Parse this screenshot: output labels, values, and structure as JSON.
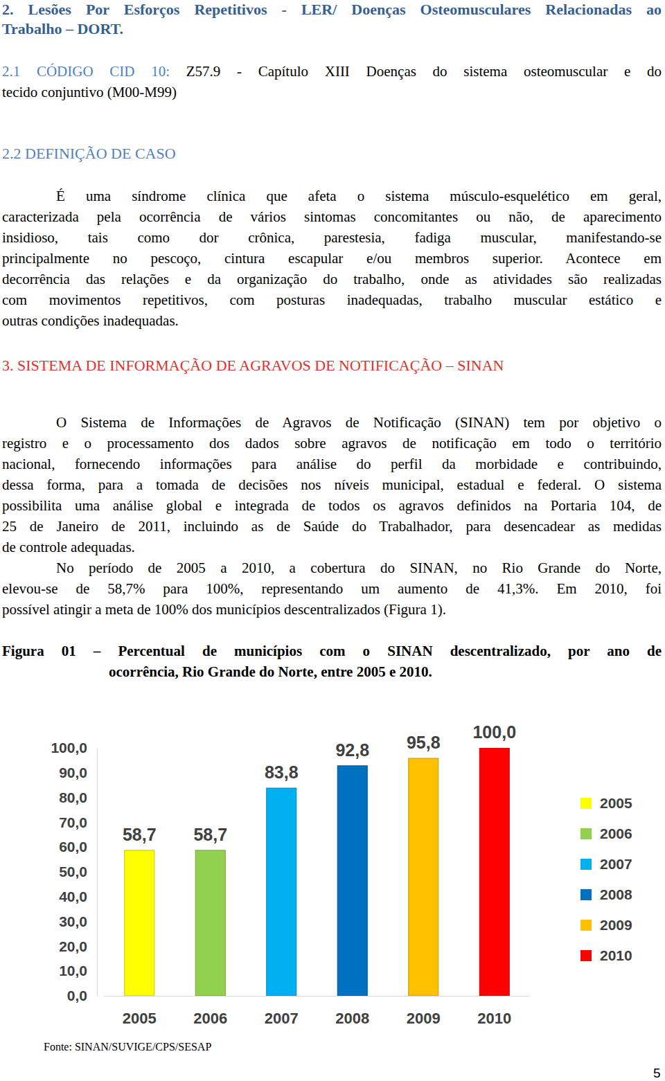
{
  "document": {
    "heading": [
      "2. Lesões Por Esforços Repetitivos - LER/ Doenças Osteomusculares Relacionadas ao",
      "Trabalho – DORT."
    ],
    "cid": {
      "label": "2.1 CÓDIGO CID 10:",
      "lines": [
        "Z57.9 - Capítulo XIII Doenças do sistema osteomuscular e do",
        "tecido conjuntivo (M00-M99)"
      ]
    },
    "case_heading": "2.2 DEFINIÇÃO DE CASO",
    "section_heading": "3. SISTEMA DE INFORMAÇÃO DE AGRAVOS DE NOTIFICAÇÃO – SINAN",
    "paragraphs": [
      {
        "lines": [
          "É uma síndrome clínica que afeta o sistema músculo-esquelético em geral,",
          "caracterizada pela ocorrência de vários sintomas concomitantes ou não, de aparecimento",
          "insidioso, tais como dor crônica, parestesia, fadiga muscular, manifestando-se",
          "principalmente no pescoço, cintura escapular e/ou membros superior. Acontece em",
          "decorrência das relações e da organização do trabalho, onde as atividades são realizadas",
          "com movimentos repetitivos, com posturas inadequadas, trabalho muscular estático e",
          "outras condições inadequadas."
        ]
      },
      {
        "lines": [
          "O Sistema de Informações de Agravos de Notificação (SINAN) tem por objetivo o",
          "registro e o processamento dos dados sobre agravos de notificação em todo o território",
          "nacional, fornecendo informações para análise do perfil da morbidade e contribuindo,",
          "dessa forma, para a tomada de decisões nos níveis municipal, estadual e federal. O sistema",
          "possibilita uma análise global e integrada de todos os agravos definidos na Portaria 104, de",
          "25 de Janeiro de 2011, incluindo as de Saúde do Trabalhador, para desencadear as medidas",
          "de controle adequadas."
        ]
      },
      {
        "lines": [
          "No período de 2005 a 2010, a cobertura do SINAN, no Rio Grande do Norte,",
          "elevou-se de 58,7% para 100%, representando um aumento de 41,3%. Em 2010, foi",
          "possível atingir a meta de 100% dos municípios descentralizados (Figura 1)."
        ]
      }
    ],
    "figure_caption": [
      "Figura 01 – Percentual de municípios com o SINAN descentralizado, por ano de",
      "ocorrência, Rio Grande do Norte, entre 2005 e 2010."
    ],
    "source": "Fonte: SINAN/SUVIGE/CPS/SESAP",
    "page_number": "5"
  },
  "chart_data": {
    "type": "bar",
    "categories": [
      "2005",
      "2006",
      "2007",
      "2008",
      "2009",
      "2010"
    ],
    "values": [
      58.7,
      58.7,
      83.8,
      92.8,
      95.8,
      100
    ],
    "value_labels": [
      "58,7",
      "58,7",
      "83,8",
      "92,8",
      "95,8",
      "100,0"
    ],
    "colors": [
      "#ffff00",
      "#92d050",
      "#00b0f0",
      "#0070c0",
      "#ffc000",
      "#ff0000"
    ],
    "ylim": [
      0,
      100
    ],
    "yticks": [
      {
        "value": 0,
        "label": "0,0"
      },
      {
        "value": 10,
        "label": "10,0"
      },
      {
        "value": 20,
        "label": "20,0"
      },
      {
        "value": 30,
        "label": "30,0"
      },
      {
        "value": 40,
        "label": "40,0"
      },
      {
        "value": 50,
        "label": "50,0"
      },
      {
        "value": 60,
        "label": "60,0"
      },
      {
        "value": 70,
        "label": "70,0"
      },
      {
        "value": 80,
        "label": "80,0"
      },
      {
        "value": 90,
        "label": "90,0"
      },
      {
        "value": 100,
        "label": "100,0"
      }
    ],
    "data_labels": true,
    "legend": "right",
    "grid": false
  }
}
